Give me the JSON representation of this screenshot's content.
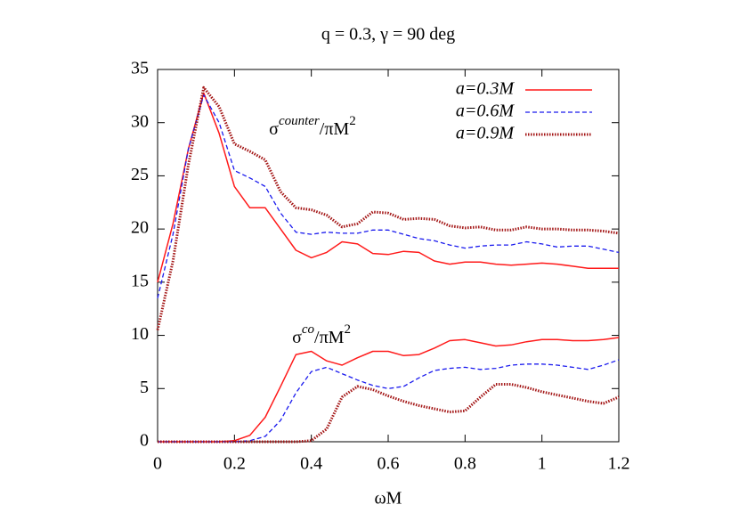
{
  "chart_data": {
    "type": "line",
    "title": "q = 0.3, γ = 90 deg",
    "x_label": "ωM",
    "x": [
      0,
      0.04,
      0.08,
      0.12,
      0.16,
      0.2,
      0.24,
      0.28,
      0.32,
      0.36,
      0.4,
      0.44,
      0.48,
      0.52,
      0.56,
      0.6,
      0.64,
      0.68,
      0.72,
      0.76,
      0.8,
      0.84,
      0.88,
      0.92,
      0.96,
      1.0,
      1.04,
      1.08,
      1.12,
      1.16,
      1.2
    ],
    "series": [
      {
        "name": "a=0.3M",
        "color": "#ff1a1a",
        "dash": "none",
        "width": 1.5,
        "counter": [
          15,
          20.5,
          27.5,
          32.8,
          29,
          24,
          22,
          22,
          20,
          18,
          17.3,
          17.8,
          18.8,
          18.6,
          17.7,
          17.6,
          17.9,
          17.8,
          17,
          16.7,
          16.9,
          16.9,
          16.7,
          16.6,
          16.7,
          16.8,
          16.7,
          16.5,
          16.3,
          16.3,
          16.3
        ],
        "co": [
          0,
          0,
          0,
          0,
          0,
          0.1,
          0.6,
          2.3,
          5.2,
          8.2,
          8.5,
          7.6,
          7.2,
          7.9,
          8.5,
          8.5,
          8.1,
          8.2,
          8.8,
          9.5,
          9.6,
          9.3,
          9,
          9.1,
          9.4,
          9.6,
          9.6,
          9.5,
          9.5,
          9.6,
          9.8
        ]
      },
      {
        "name": "a=0.6M",
        "color": "#1a1aee",
        "dash": "5,3",
        "width": 1.3,
        "counter": [
          13.5,
          19.5,
          27.5,
          32.6,
          30,
          25.5,
          24.8,
          24,
          21.5,
          19.7,
          19.5,
          19.7,
          19.6,
          19.6,
          19.9,
          19.9,
          19.5,
          19.1,
          18.9,
          18.5,
          18.2,
          18.4,
          18.5,
          18.5,
          18.8,
          18.6,
          18.3,
          18.4,
          18.4,
          18.1,
          17.8
        ],
        "co": [
          0,
          0,
          0,
          0,
          0,
          0,
          0.1,
          0.5,
          2,
          4.6,
          6.6,
          7,
          6.4,
          5.8,
          5.3,
          5,
          5.2,
          6,
          6.7,
          6.9,
          7,
          6.8,
          6.9,
          7.2,
          7.3,
          7.3,
          7.2,
          7,
          6.8,
          7.2,
          7.7
        ]
      },
      {
        "name": "a=0.9M",
        "color": "#a31515",
        "dash": "1.5,1.5",
        "width": 3,
        "counter": [
          10.5,
          17,
          26,
          33.3,
          31.5,
          28,
          27.3,
          26.5,
          23.5,
          22,
          21.8,
          21.3,
          20.2,
          20.5,
          21.6,
          21.5,
          20.9,
          21,
          20.9,
          20.3,
          20.1,
          20.2,
          19.9,
          19.9,
          20.2,
          20,
          20,
          19.9,
          19.9,
          19.8,
          19.6
        ],
        "co": [
          0,
          0,
          0,
          0,
          0,
          0,
          0,
          0,
          0,
          0,
          0.1,
          1.2,
          4.2,
          5.2,
          4.9,
          4.3,
          3.8,
          3.4,
          3.1,
          2.8,
          2.9,
          4.2,
          5.4,
          5.4,
          5.1,
          4.7,
          4.4,
          4.1,
          3.8,
          3.6,
          4.2
        ]
      }
    ],
    "annotations": [
      {
        "text": "σ",
        "sup": "counter",
        "text2": "/πM",
        "sup2": "2",
        "x": 0.29,
        "y": 29.3
      },
      {
        "text": "σ",
        "sup": "co",
        "text2": "/πM",
        "sup2": "2",
        "x": 0.35,
        "y": 9.7
      }
    ],
    "xlim": [
      0,
      1.2
    ],
    "ylim": [
      0,
      35
    ],
    "xticks": [
      0,
      0.2,
      0.4,
      0.6,
      0.8,
      1,
      1.2
    ],
    "yticks": [
      0,
      5,
      10,
      15,
      20,
      25,
      30,
      35
    ],
    "legend": "top-right"
  }
}
